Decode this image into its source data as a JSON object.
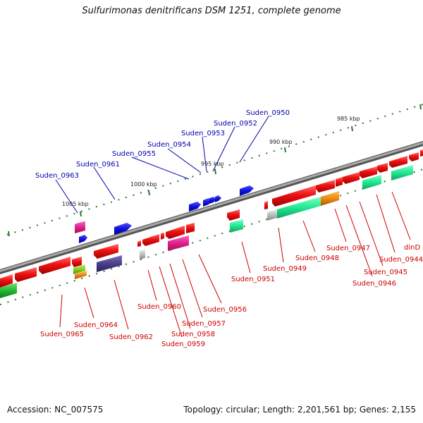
{
  "title": "Sulfurimonas denitrificans DSM 1251, complete genome",
  "footer": {
    "accession": "Accession: NC_007575",
    "topology": "Topology: circular; Length: 2,201,561 bp; Genes: 2,155"
  },
  "scale_labels": [
    "985 kbp",
    "990 kbp",
    "995 kbp",
    "1000 kbp",
    "1005 kbp"
  ],
  "top_labels": [
    "Suden_0950",
    "Suden_0952",
    "Suden_0953",
    "Suden_0954",
    "Suden_0955",
    "Suden_0961",
    "Suden_0963"
  ],
  "bottom_labels": [
    "dinD",
    "Suden_0944",
    "Suden_0945",
    "Suden_0946",
    "Suden_0947",
    "Suden_0948",
    "Suden_0949",
    "Suden_0951",
    "Suden_0956",
    "Suden_0957",
    "Suden_0958",
    "Suden_0959",
    "Suden_0960",
    "Suden_0962",
    "Suden_0964",
    "Suden_0965"
  ],
  "colors": {
    "forward_label": "#0000b0",
    "reverse_label": "#cc0000",
    "backbone": "#808080",
    "cds_forward": "#1010e0",
    "cds_reverse": "#ee1111",
    "magenta": "#e0208a",
    "spring_green": "#20e890",
    "navy_purple": "#4a3f8a",
    "orange": "#ee8a10",
    "light_gray": "#bbbbbb",
    "yellow_green": "#88cc22",
    "green": "#22bb33",
    "tick_green": "#2a7a2a"
  }
}
